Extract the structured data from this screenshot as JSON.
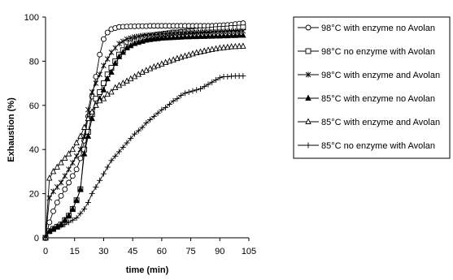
{
  "chart_data": {
    "type": "line",
    "title": "",
    "xlabel": "time (min)",
    "ylabel": "Exhaustion (%)",
    "xlim": [
      0,
      105
    ],
    "ylim": [
      0,
      100
    ],
    "x_ticks": [
      0,
      15,
      30,
      45,
      60,
      75,
      90,
      105
    ],
    "y_ticks": [
      0,
      20,
      40,
      60,
      80,
      100
    ],
    "grid": false,
    "legend_position": "right",
    "colors": {
      "line": "#000000",
      "background": "#ffffff"
    },
    "series": [
      {
        "name": "98°C with enzyme no Avolan",
        "marker": "circle-open",
        "x": [
          0,
          2,
          4,
          6,
          8,
          10,
          12,
          14,
          16,
          18,
          20,
          22,
          24,
          26,
          28,
          30,
          32,
          34,
          36,
          38,
          40,
          42,
          44,
          46,
          48,
          50,
          52,
          54,
          56,
          58,
          60,
          62,
          64,
          66,
          68,
          70,
          72,
          74,
          76,
          78,
          80,
          82,
          84,
          86,
          88,
          90,
          92,
          94,
          96,
          98,
          100,
          102
        ],
        "y": [
          0,
          7,
          12,
          16,
          19,
          22,
          25,
          28,
          31,
          36,
          44,
          55,
          64,
          73,
          83,
          90,
          93,
          94.5,
          95,
          95.5,
          95.6,
          95.7,
          95.8,
          95.8,
          95.9,
          95.9,
          95.9,
          96,
          96,
          96,
          96,
          96,
          96,
          96,
          96,
          96,
          96,
          96,
          96,
          96,
          96,
          96,
          96,
          96,
          96.1,
          96.2,
          96.3,
          96.4,
          96.5,
          96.8,
          97,
          97.2
        ]
      },
      {
        "name": "98°C no enzyme with Avolan",
        "marker": "square-open",
        "x": [
          0,
          2,
          4,
          6,
          8,
          10,
          12,
          14,
          16,
          18,
          20,
          22,
          24,
          26,
          28,
          30,
          32,
          34,
          36,
          38,
          40,
          42,
          44,
          46,
          48,
          50,
          52,
          54,
          56,
          58,
          60,
          62,
          64,
          66,
          68,
          70,
          72,
          74,
          76,
          78,
          80,
          82,
          84,
          86,
          88,
          90,
          92,
          94,
          96,
          98,
          100,
          102
        ],
        "y": [
          0,
          3,
          4,
          5,
          6,
          8,
          10,
          13,
          17,
          22,
          40,
          48,
          56,
          63,
          66,
          70,
          74,
          77,
          80,
          83,
          85,
          86.5,
          88,
          89,
          90,
          90.5,
          91,
          91.3,
          91.6,
          92,
          92.2,
          92.5,
          92.7,
          93,
          93,
          93.2,
          93.3,
          93.5,
          93.6,
          93.8,
          94,
          94,
          94.1,
          94.3,
          94.5,
          94.6,
          94.7,
          94.8,
          95,
          95,
          95.2,
          95.3
        ]
      },
      {
        "name": "98°C with enzyme and Avolan",
        "marker": "asterisk",
        "x": [
          0,
          2,
          4,
          6,
          8,
          10,
          12,
          14,
          16,
          18,
          20,
          22,
          24,
          26,
          28,
          30,
          32,
          34,
          36,
          38,
          40,
          42,
          44,
          46,
          48,
          50,
          52,
          54,
          56,
          58,
          60,
          62,
          64,
          66,
          68,
          70,
          72,
          74,
          76,
          78,
          80,
          82,
          84,
          86,
          88,
          90,
          92,
          94,
          96,
          98,
          100,
          102
        ],
        "y": [
          0,
          18,
          21,
          23,
          25,
          28,
          31,
          34,
          37,
          40,
          46,
          58,
          66,
          70,
          74,
          78,
          81,
          84,
          86,
          88,
          89,
          90,
          90.5,
          91,
          91.3,
          91.6,
          91.8,
          92,
          92,
          92.2,
          92.4,
          92.5,
          92.6,
          92.7,
          92.8,
          92.8,
          92.9,
          93,
          93,
          93,
          93.1,
          93.2,
          93.2,
          93.3,
          93.3,
          93.4,
          93.4,
          93.5,
          93.5,
          93.6,
          93.6,
          93.7
        ]
      },
      {
        "name": "85°C with enzyme no Avolan",
        "marker": "triangle-filled",
        "x": [
          0,
          2,
          4,
          6,
          8,
          10,
          12,
          14,
          16,
          18,
          20,
          22,
          24,
          26,
          28,
          30,
          32,
          34,
          36,
          38,
          40,
          42,
          44,
          46,
          48,
          50,
          52,
          54,
          56,
          58,
          60,
          62,
          64,
          66,
          68,
          70,
          72,
          74,
          76,
          78,
          80,
          82,
          84,
          86,
          88,
          90,
          92,
          94,
          96,
          98,
          100,
          102
        ],
        "y": [
          0,
          3,
          4,
          5,
          6,
          8,
          10,
          13,
          17,
          22,
          38,
          46,
          54,
          60,
          63,
          67,
          72,
          75,
          79,
          82,
          84,
          86,
          87,
          88,
          88.5,
          89,
          89.5,
          89.8,
          90,
          90.2,
          90.4,
          90.5,
          90.6,
          90.7,
          90.8,
          90.9,
          91,
          91,
          91.1,
          91.1,
          91.2,
          91.2,
          91.3,
          91.3,
          91.4,
          91.4,
          91.5,
          91.5,
          91.6,
          91.6,
          91.7,
          91.7
        ]
      },
      {
        "name": "85°C with enzyme and Avolan",
        "marker": "triangle-open",
        "x": [
          0,
          2,
          4,
          6,
          8,
          10,
          12,
          14,
          16,
          18,
          20,
          22,
          24,
          26,
          28,
          30,
          32,
          34,
          36,
          38,
          40,
          42,
          44,
          46,
          48,
          50,
          52,
          54,
          56,
          58,
          60,
          62,
          64,
          66,
          68,
          70,
          72,
          74,
          76,
          78,
          80,
          82,
          84,
          86,
          88,
          90,
          92,
          94,
          96,
          98,
          100,
          102
        ],
        "y": [
          0,
          27,
          30,
          32,
          34,
          36,
          38,
          40,
          43,
          46,
          50,
          54,
          57,
          60,
          62,
          63,
          65,
          66,
          68,
          69,
          70,
          71,
          72,
          73,
          74,
          75,
          75.8,
          76.6,
          77.4,
          78,
          78.7,
          79.4,
          80,
          80.6,
          81.2,
          81.8,
          82.3,
          82.8,
          83.3,
          83.8,
          84.2,
          84.6,
          85,
          85.3,
          85.6,
          85.9,
          86.1,
          86.3,
          86.5,
          86.6,
          86.7,
          86.8
        ]
      },
      {
        "name": "85°C no enzyme with Avolan",
        "marker": "plus",
        "x": [
          0,
          2,
          4,
          6,
          8,
          10,
          12,
          14,
          16,
          18,
          20,
          22,
          24,
          26,
          28,
          30,
          32,
          34,
          36,
          38,
          40,
          42,
          44,
          46,
          48,
          50,
          52,
          54,
          56,
          58,
          60,
          62,
          64,
          66,
          68,
          70,
          72,
          74,
          76,
          78,
          80,
          82,
          84,
          86,
          88,
          90,
          92,
          94,
          96,
          98,
          100,
          102
        ],
        "y": [
          0,
          3,
          4,
          5,
          5.5,
          6,
          7,
          8,
          9,
          11,
          13,
          16,
          20,
          23,
          26,
          29,
          32,
          35,
          37,
          39,
          41,
          43,
          45,
          47,
          48.5,
          50,
          52,
          53.5,
          55,
          56.5,
          58,
          59,
          60.5,
          62,
          63,
          64.5,
          65.5,
          66,
          66.5,
          67,
          67.5,
          68.5,
          69.5,
          70.5,
          71.5,
          72.5,
          73,
          73,
          73.2,
          73.3,
          73.3,
          73.3
        ]
      }
    ]
  }
}
